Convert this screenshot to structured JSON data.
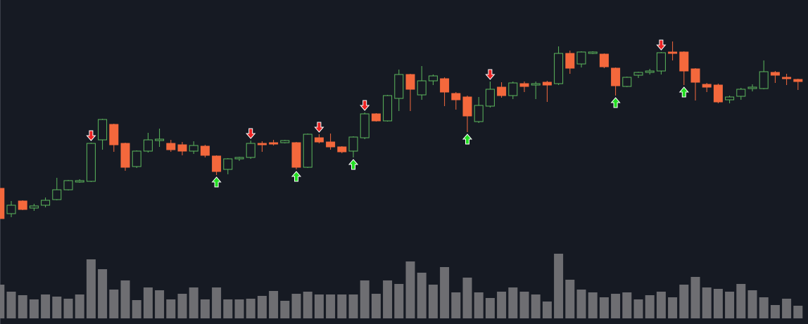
{
  "chart_data": {
    "type": "candlestick",
    "up_color": "#5cb85c",
    "down_color": "#f4683c",
    "volume_color": "#6e6e72",
    "ylim": [
      0,
      461
    ],
    "volume_ylim": [
      0,
      453
    ],
    "open": [
      193,
      157,
      175,
      165,
      169,
      177,
      191,
      202,
      203,
      262,
      284,
      257,
      224,
      246,
      261,
      257,
      255,
      246,
      253,
      239,
      220,
      235,
      237,
      257,
      258,
      258,
      258,
      223,
      265,
      259,
      252,
      246,
      265,
      299,
      289,
      321,
      355,
      326,
      346,
      349,
      328,
      323,
      288,
      310,
      337,
      325,
      342,
      340,
      344,
      342,
      385,
      370,
      385,
      384,
      364,
      338,
      354,
      358,
      360,
      387,
      387,
      363,
      341,
      340,
      319,
      324,
      335,
      335,
      358,
      351,
      348
    ],
    "high": [
      193,
      175,
      176,
      171,
      180,
      208,
      205,
      206,
      258,
      292,
      285,
      258,
      247,
      272,
      278,
      262,
      259,
      260,
      255,
      240,
      236,
      238,
      261,
      260,
      262,
      262,
      259,
      271,
      270,
      271,
      253,
      267,
      301,
      300,
      326,
      362,
      356,
      367,
      355,
      351,
      330,
      325,
      323,
      345,
      344,
      345,
      345,
      345,
      346,
      395,
      389,
      388,
      388,
      385,
      365,
      352,
      359,
      363,
      387,
      402,
      388,
      364,
      343,
      342,
      325,
      336,
      341,
      375,
      360,
      356,
      349
    ],
    "low": [
      150,
      152,
      162,
      161,
      166,
      176,
      190,
      201,
      202,
      248,
      245,
      218,
      222,
      244,
      252,
      245,
      240,
      242,
      237,
      212,
      213,
      232,
      235,
      245,
      254,
      257,
      220,
      222,
      257,
      248,
      243,
      237,
      263,
      288,
      288,
      303,
      303,
      319,
      340,
      310,
      305,
      273,
      286,
      308,
      322,
      320,
      330,
      320,
      316,
      340,
      356,
      365,
      384,
      364,
      325,
      337,
      350,
      355,
      355,
      375,
      340,
      318,
      330,
      314,
      314,
      319,
      331,
      334,
      343,
      340,
      333
    ],
    "close": [
      150,
      169,
      163,
      168,
      176,
      191,
      204,
      204,
      257,
      291,
      255,
      223,
      246,
      262,
      263,
      248,
      246,
      254,
      240,
      217,
      235,
      237,
      257,
      255,
      256,
      261,
      223,
      270,
      259,
      252,
      245,
      266,
      299,
      289,
      325,
      355,
      334,
      346,
      353,
      330,
      319,
      296,
      311,
      334,
      325,
      343,
      338,
      342,
      340,
      385,
      364,
      387,
      387,
      366,
      339,
      351,
      358,
      360,
      386,
      385,
      360,
      344,
      337,
      316,
      323,
      334,
      337,
      359,
      354,
      349,
      345
    ],
    "volume": [
      48,
      38,
      33,
      27,
      34,
      31,
      28,
      34,
      84,
      70,
      41,
      54,
      26,
      44,
      40,
      27,
      35,
      44,
      27,
      44,
      27,
      27,
      28,
      32,
      39,
      25,
      35,
      38,
      34,
      34,
      34,
      34,
      54,
      35,
      54,
      49,
      81,
      65,
      48,
      73,
      37,
      58,
      37,
      29,
      38,
      44,
      38,
      34,
      24,
      92,
      55,
      41,
      37,
      30,
      35,
      37,
      27,
      33,
      38,
      30,
      48,
      59,
      44,
      42,
      38,
      49,
      40,
      30,
      19,
      28,
      18
    ],
    "signals": {
      "up": [
        19,
        26,
        31,
        41,
        54,
        60
      ],
      "down": [
        8,
        22,
        28,
        32,
        43,
        58
      ]
    }
  }
}
